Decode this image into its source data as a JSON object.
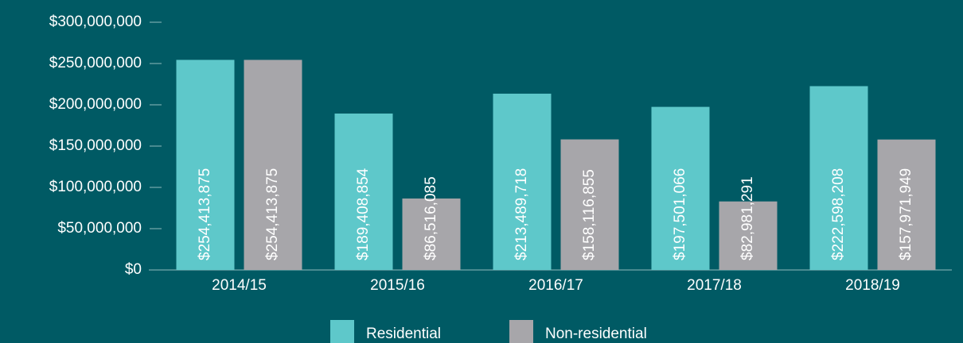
{
  "chart_data": {
    "type": "bar",
    "categories": [
      "2014/15",
      "2015/16",
      "2016/17",
      "2017/18",
      "2018/19"
    ],
    "series": [
      {
        "name": "Residential",
        "color": "#5ec8ca",
        "values": [
          254413875,
          189408854,
          213489718,
          197501066,
          222598208
        ],
        "value_labels": [
          "$254,413,875",
          "$189,408,854",
          "$213,489,718",
          "$197,501,066",
          "$222,598,208"
        ]
      },
      {
        "name": "Non-residential",
        "color": "#a7a6aa",
        "values": [
          254413875,
          86516085,
          158116855,
          82981291,
          157971949
        ],
        "value_labels": [
          "$254,413,875",
          "$86,516,085",
          "$158,116,855",
          "$82,981,291",
          "$157,971,949"
        ]
      }
    ],
    "ylim": [
      0,
      300000000
    ],
    "yticks": [
      {
        "value": 0,
        "label": "$0"
      },
      {
        "value": 50000000,
        "label": "$50,000,000"
      },
      {
        "value": 100000000,
        "label": "$100,000,000"
      },
      {
        "value": 150000000,
        "label": "$150,000,000"
      },
      {
        "value": 200000000,
        "label": "$200,000,000"
      },
      {
        "value": 250000000,
        "label": "$250,000,000"
      },
      {
        "value": 300000000,
        "label": "$300,000,000"
      }
    ],
    "legend": "bottom"
  }
}
